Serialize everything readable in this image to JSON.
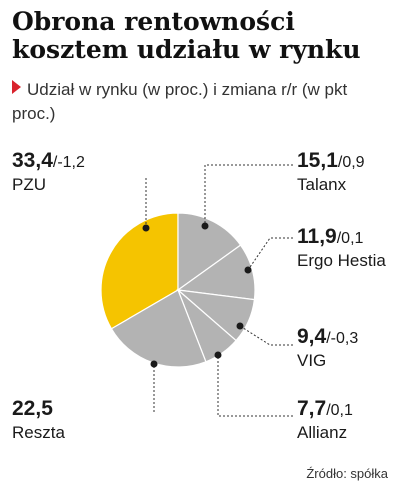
{
  "title": "Obrona rentowności kosztem udziału w rynku",
  "subtitle": "Udział w rynku (w proc.) i zmiana r/r (w pkt proc.)",
  "source": "Źródło: spółka",
  "chart_data": {
    "type": "pie",
    "title": "Obrona rentowności kosztem udziału w rynku",
    "subtitle": "Udział w rynku (w proc.) i zmiana r/r (w pkt proc.)",
    "slices": [
      {
        "name": "PZU",
        "value": 33.4,
        "value_label": "33,4",
        "change_label": "/-1,2",
        "color": "#f5c400"
      },
      {
        "name": "Talanx",
        "value": 15.1,
        "value_label": "15,1",
        "change_label": "/0,9",
        "color": "#b3b3b3"
      },
      {
        "name": "Ergo Hestia",
        "value": 11.9,
        "value_label": "11,9",
        "change_label": "/0,1",
        "color": "#b3b3b3"
      },
      {
        "name": "VIG",
        "value": 9.4,
        "value_label": "9,4",
        "change_label": "/-0,3",
        "color": "#b3b3b3"
      },
      {
        "name": "Allianz",
        "value": 7.7,
        "value_label": "7,7",
        "change_label": "/0,1",
        "color": "#b3b3b3"
      },
      {
        "name": "Reszta",
        "value": 22.5,
        "value_label": "22,5",
        "change_label": "",
        "color": "#b3b3b3"
      }
    ]
  }
}
